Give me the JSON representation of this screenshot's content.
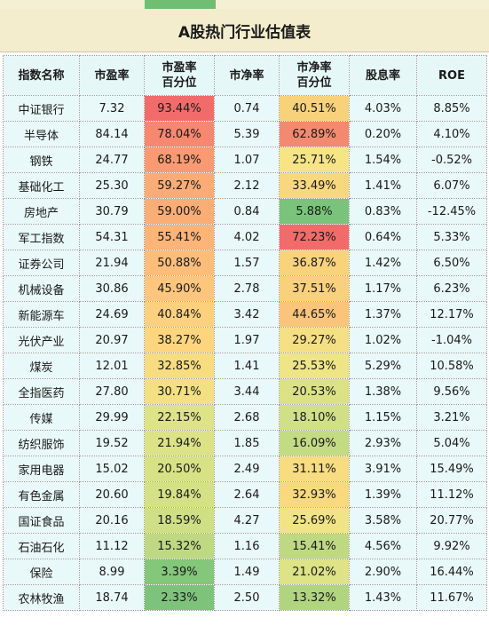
{
  "title": "A股热门行业估值表",
  "headers": {
    "name": "指数名称",
    "pe": "市盈率",
    "pe_pct_line1": "市盈率",
    "pe_pct_line2": "百分位",
    "pb": "市净率",
    "pb_pct_line1": "市净率",
    "pb_pct_line2": "百分位",
    "dividend": "股息率",
    "roe": "ROE"
  },
  "rows": [
    {
      "name": "中证银行",
      "pe": "7.32",
      "pe_pct": "93.44%",
      "pe_pct_color": "#f26b6b",
      "pb": "0.74",
      "pb_pct": "40.51%",
      "pb_pct_color": "#f8d27a",
      "dividend": "4.03%",
      "roe": "8.85%"
    },
    {
      "name": "半导体",
      "pe": "84.14",
      "pe_pct": "78.04%",
      "pe_pct_color": "#f7876f",
      "pb": "5.39",
      "pb_pct": "62.89%",
      "pb_pct_color": "#f38a6f",
      "dividend": "0.20%",
      "roe": "4.10%"
    },
    {
      "name": "钢铁",
      "pe": "24.77",
      "pe_pct": "68.19%",
      "pe_pct_color": "#f99a72",
      "pb": "1.07",
      "pb_pct": "25.71%",
      "pb_pct_color": "#f6e487",
      "dividend": "1.54%",
      "roe": "-0.52%"
    },
    {
      "name": "基础化工",
      "pe": "25.30",
      "pe_pct": "59.27%",
      "pe_pct_color": "#fbac76",
      "pb": "2.12",
      "pb_pct": "33.49%",
      "pb_pct_color": "#f8d87e",
      "dividend": "1.41%",
      "roe": "6.07%"
    },
    {
      "name": "房地产",
      "pe": "30.79",
      "pe_pct": "59.00%",
      "pe_pct_color": "#fbad76",
      "pb": "0.84",
      "pb_pct": "5.88%",
      "pb_pct_color": "#79c47a",
      "dividend": "0.83%",
      "roe": "-12.45%"
    },
    {
      "name": "军工指数",
      "pe": "54.31",
      "pe_pct": "55.41%",
      "pe_pct_color": "#fcb478",
      "pb": "4.02",
      "pb_pct": "72.23%",
      "pb_pct_color": "#f26b6b",
      "dividend": "0.64%",
      "roe": "5.33%"
    },
    {
      "name": "证券公司",
      "pe": "21.94",
      "pe_pct": "50.88%",
      "pe_pct_color": "#fcbd7a",
      "pb": "1.57",
      "pb_pct": "36.87%",
      "pb_pct_color": "#f9d27c",
      "dividend": "1.42%",
      "roe": "6.50%"
    },
    {
      "name": "机械设备",
      "pe": "30.86",
      "pe_pct": "45.90%",
      "pe_pct_color": "#fdc67c",
      "pb": "2.78",
      "pb_pct": "37.51%",
      "pb_pct_color": "#f9d07c",
      "dividend": "1.17%",
      "roe": "6.23%"
    },
    {
      "name": "新能源车",
      "pe": "24.69",
      "pe_pct": "40.84%",
      "pe_pct_color": "#fdd07e",
      "pb": "3.42",
      "pb_pct": "44.65%",
      "pb_pct_color": "#fac47a",
      "dividend": "1.37%",
      "roe": "12.17%"
    },
    {
      "name": "光伏产业",
      "pe": "20.97",
      "pe_pct": "38.27%",
      "pe_pct_color": "#fdd57f",
      "pb": "1.97",
      "pb_pct": "29.27%",
      "pb_pct_color": "#f5df84",
      "dividend": "1.02%",
      "roe": "-1.04%"
    },
    {
      "name": "煤炭",
      "pe": "12.01",
      "pe_pct": "32.85%",
      "pe_pct_color": "#f7dd80",
      "pb": "1.41",
      "pb_pct": "25.53%",
      "pb_pct_color": "#eee586",
      "dividend": "5.29%",
      "roe": "10.58%"
    },
    {
      "name": "全指医药",
      "pe": "27.80",
      "pe_pct": "30.71%",
      "pe_pct_color": "#f2e083",
      "pb": "3.44",
      "pb_pct": "20.53%",
      "pb_pct_color": "#dbe285",
      "dividend": "1.38%",
      "roe": "9.56%"
    },
    {
      "name": "传媒",
      "pe": "29.99",
      "pe_pct": "22.15%",
      "pe_pct_color": "#dde386",
      "pb": "2.68",
      "pb_pct": "18.10%",
      "pb_pct_color": "#cfe086",
      "dividend": "1.15%",
      "roe": "3.21%"
    },
    {
      "name": "纺织服饰",
      "pe": "19.52",
      "pe_pct": "21.94%",
      "pe_pct_color": "#dce386",
      "pb": "1.85",
      "pb_pct": "16.09%",
      "pb_pct_color": "#c3dc84",
      "dividend": "2.93%",
      "roe": "5.04%"
    },
    {
      "name": "家用电器",
      "pe": "15.02",
      "pe_pct": "20.50%",
      "pe_pct_color": "#d7e286",
      "pb": "2.49",
      "pb_pct": "31.11%",
      "pb_pct_color": "#f7dc82",
      "dividend": "3.91%",
      "roe": "15.49%"
    },
    {
      "name": "有色金属",
      "pe": "20.60",
      "pe_pct": "19.84%",
      "pe_pct_color": "#d4e186",
      "pb": "2.64",
      "pb_pct": "32.93%",
      "pb_pct_color": "#f8d97f",
      "dividend": "1.39%",
      "roe": "11.12%"
    },
    {
      "name": "国证食品",
      "pe": "20.16",
      "pe_pct": "18.59%",
      "pe_pct_color": "#cfdf85",
      "pb": "4.27",
      "pb_pct": "25.69%",
      "pb_pct_color": "#f1e486",
      "dividend": "3.58%",
      "roe": "20.77%"
    },
    {
      "name": "石油石化",
      "pe": "11.12",
      "pe_pct": "15.32%",
      "pe_pct_color": "#bfd982",
      "pb": "1.16",
      "pb_pct": "15.41%",
      "pb_pct_color": "#bfd982",
      "dividend": "4.56%",
      "roe": "9.92%"
    },
    {
      "name": "保险",
      "pe": "8.99",
      "pe_pct": "3.39%",
      "pe_pct_color": "#84c67a",
      "pb": "1.49",
      "pb_pct": "21.02%",
      "pb_pct_color": "#dde386",
      "dividend": "2.90%",
      "roe": "16.44%"
    },
    {
      "name": "农林牧渔",
      "pe": "18.74",
      "pe_pct": "2.33%",
      "pe_pct_color": "#7dc47a",
      "pb": "2.50",
      "pb_pct": "13.32%",
      "pb_pct_color": "#b1d47f",
      "dividend": "1.43%",
      "roe": "11.67%"
    }
  ]
}
